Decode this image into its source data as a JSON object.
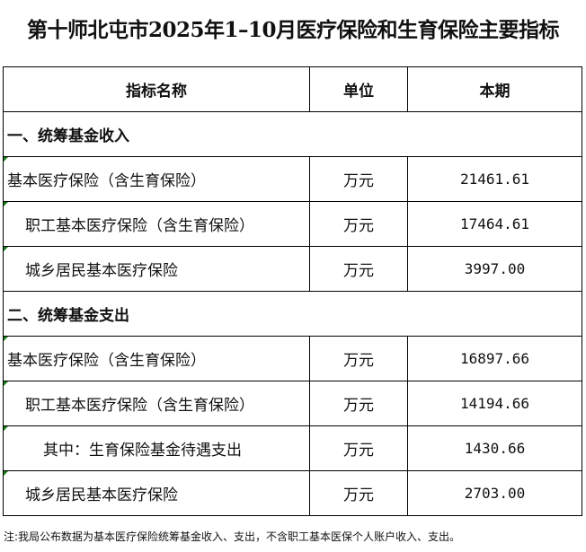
{
  "title": "第十师北屯市2025年1–10月医疗保险和生育保险主要指标",
  "headers": [
    "指标名称",
    "单位",
    "本期"
  ],
  "sections": [
    {
      "label": "一、统筹基金收入",
      "rows": [
        {
          "name": "基本医疗保险（含生育保险）",
          "unit": "万元",
          "value": "21461.61",
          "level": 1
        },
        {
          "name": "职工基本医疗保险（含生育保险）",
          "unit": "万元",
          "value": "17464.61",
          "level": 2
        },
        {
          "name": "城乡居民基本医疗保险",
          "unit": "万元",
          "value": "3997.00",
          "level": 2
        }
      ]
    },
    {
      "label": "二、统筹基金支出",
      "rows": [
        {
          "name": "基本医疗保险（含生育保险）",
          "unit": "万元",
          "value": "16897.66",
          "level": 1
        },
        {
          "name": "职工基本医疗保险（含生育保险）",
          "unit": "万元",
          "value": "14194.66",
          "level": 2
        },
        {
          "name": "其中：生育保险基金待遇支出",
          "unit": "万元",
          "value": "1430.66",
          "level": 3
        },
        {
          "name": "城乡居民基本医疗保险",
          "unit": "万元",
          "value": "2703.00",
          "level": 2
        }
      ]
    }
  ],
  "note": "注:我局公布数据为基本医疗保险统筹基金收入、支出，不含职工基本医保个人账户收入、支出。"
}
